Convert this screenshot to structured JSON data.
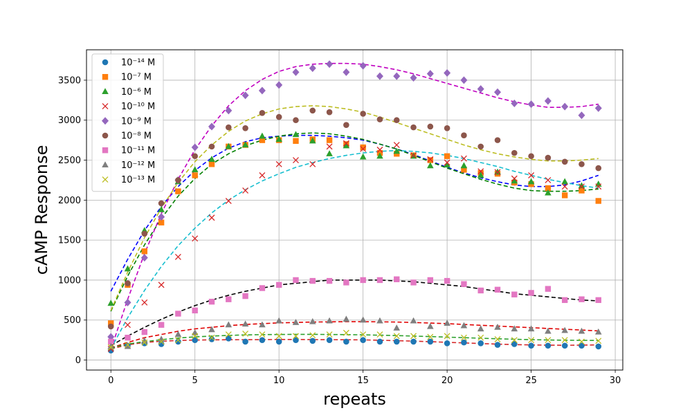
{
  "chart_data": {
    "type": "scatter",
    "title": "",
    "xlabel": "repeats",
    "ylabel": "cAMP Response",
    "xlim": [
      -1.45,
      30.45
    ],
    "ylim": [
      -125,
      3880
    ],
    "xticks": [
      0,
      5,
      10,
      15,
      20,
      25,
      30
    ],
    "yticks": [
      0,
      500,
      1000,
      1500,
      2000,
      2500,
      3000,
      3500
    ],
    "grid": true,
    "legend_position": "top-left",
    "x": [
      0,
      1,
      2,
      3,
      4,
      5,
      6,
      7,
      8,
      9,
      10,
      11,
      12,
      13,
      14,
      15,
      16,
      17,
      18,
      19,
      20,
      21,
      22,
      23,
      24,
      25,
      26,
      27,
      28,
      29
    ],
    "series": [
      {
        "name": "10⁻¹⁴ M",
        "marker": "circle",
        "color": "#1f77b4",
        "values": [
          120,
          180,
          210,
          200,
          230,
          250,
          260,
          270,
          230,
          250,
          230,
          250,
          240,
          250,
          230,
          250,
          230,
          230,
          230,
          230,
          210,
          220,
          210,
          190,
          200,
          180,
          180,
          180,
          180,
          170
        ],
        "fit_color": "#d62728",
        "fit": [
          140,
          190,
          220,
          235,
          245,
          250,
          252,
          254,
          255,
          256,
          257,
          257,
          256,
          255,
          254,
          252,
          248,
          243,
          237,
          230,
          222,
          214,
          206,
          199,
          193,
          189,
          186,
          185,
          186,
          190
        ]
      },
      {
        "name": "10⁻⁷ M",
        "marker": "square",
        "color": "#ff7f0e",
        "values": [
          460,
          940,
          1360,
          1720,
          2110,
          2310,
          2450,
          2670,
          2690,
          2750,
          2750,
          2740,
          2760,
          2750,
          2700,
          2660,
          2590,
          2580,
          2560,
          2500,
          2550,
          2380,
          2340,
          2330,
          2220,
          2200,
          2150,
          2060,
          2120,
          1990
        ],
        "fit_color": "#0000ff",
        "fit": [
          860,
          1260,
          1620,
          1920,
          2170,
          2370,
          2530,
          2650,
          2730,
          2780,
          2800,
          2810,
          2810,
          2800,
          2780,
          2750,
          2700,
          2640,
          2570,
          2490,
          2410,
          2340,
          2280,
          2230,
          2190,
          2170,
          2170,
          2190,
          2240,
          2310
        ]
      },
      {
        "name": "10⁻⁶ M",
        "marker": "triangle",
        "color": "#2ca02c",
        "values": [
          710,
          1140,
          1620,
          1880,
          2230,
          2380,
          2510,
          2670,
          2690,
          2800,
          2760,
          2820,
          2740,
          2580,
          2680,
          2540,
          2550,
          2610,
          2550,
          2430,
          2440,
          2430,
          2310,
          2350,
          2240,
          2230,
          2090,
          2230,
          2180,
          2200
        ],
        "fit_color": "#008000",
        "fit": [
          610,
          1050,
          1440,
          1770,
          2050,
          2270,
          2450,
          2580,
          2680,
          2750,
          2800,
          2830,
          2840,
          2830,
          2800,
          2760,
          2700,
          2640,
          2560,
          2480,
          2400,
          2330,
          2260,
          2200,
          2150,
          2120,
          2110,
          2110,
          2120,
          2140
        ]
      },
      {
        "name": "10⁻¹⁰ M",
        "marker": "x",
        "color": "#d62728",
        "values": [
          140,
          440,
          720,
          940,
          1290,
          1520,
          1780,
          1990,
          2120,
          2310,
          2450,
          2500,
          2450,
          2670,
          2710,
          2640,
          2630,
          2690,
          2560,
          2510,
          2470,
          2520,
          2360,
          2350,
          2270,
          2310,
          2250,
          2170,
          2170,
          2170
        ],
        "fit_color": "#17becf",
        "fit": [
          140,
          530,
          870,
          1170,
          1430,
          1650,
          1840,
          2000,
          2130,
          2240,
          2330,
          2410,
          2470,
          2520,
          2560,
          2590,
          2610,
          2620,
          2610,
          2590,
          2560,
          2520,
          2470,
          2420,
          2360,
          2310,
          2260,
          2220,
          2180,
          2150
        ]
      },
      {
        "name": "10⁻⁹ M",
        "marker": "diamond",
        "color": "#9467bd",
        "values": [
          290,
          720,
          1280,
          1790,
          2250,
          2660,
          2920,
          3120,
          3310,
          3370,
          3440,
          3600,
          3650,
          3700,
          3600,
          3680,
          3550,
          3550,
          3530,
          3580,
          3590,
          3500,
          3390,
          3350,
          3210,
          3200,
          3240,
          3170,
          3060,
          3150
        ],
        "fit_color": "#c000c0",
        "fit": [
          130,
          760,
          1330,
          1830,
          2260,
          2630,
          2930,
          3180,
          3370,
          3510,
          3610,
          3670,
          3700,
          3710,
          3710,
          3700,
          3670,
          3630,
          3580,
          3520,
          3460,
          3400,
          3340,
          3280,
          3230,
          3190,
          3160,
          3160,
          3170,
          3200
        ]
      },
      {
        "name": "10⁻⁸ M",
        "marker": "circle",
        "color": "#8c564b",
        "values": [
          420,
          960,
          1580,
          1960,
          2250,
          2550,
          2670,
          2910,
          2900,
          3090,
          3040,
          3000,
          3120,
          3100,
          2940,
          3080,
          3010,
          3000,
          2910,
          2920,
          2900,
          2810,
          2670,
          2750,
          2590,
          2550,
          2530,
          2480,
          2450,
          2400
        ],
        "fit_color": "#bcbd22",
        "fit": [
          620,
          1100,
          1530,
          1900,
          2220,
          2480,
          2690,
          2860,
          2990,
          3080,
          3140,
          3170,
          3180,
          3170,
          3140,
          3100,
          3040,
          2970,
          2900,
          2830,
          2760,
          2690,
          2630,
          2580,
          2540,
          2510,
          2490,
          2490,
          2500,
          2520
        ]
      },
      {
        "name": "10⁻¹¹ M",
        "marker": "square",
        "color": "#e377c2",
        "values": [
          230,
          280,
          350,
          440,
          580,
          620,
          730,
          760,
          800,
          900,
          940,
          1000,
          990,
          990,
          970,
          1000,
          1000,
          1010,
          970,
          1000,
          990,
          950,
          870,
          880,
          820,
          840,
          890,
          750,
          760,
          750
        ],
        "fit_color": "#000000",
        "fit": [
          180,
          300,
          410,
          510,
          600,
          680,
          750,
          810,
          860,
          900,
          940,
          960,
          980,
          1000,
          1000,
          1000,
          1000,
          990,
          980,
          960,
          940,
          920,
          890,
          860,
          830,
          810,
          790,
          770,
          750,
          740
        ]
      },
      {
        "name": "10⁻¹² M",
        "marker": "triangle",
        "color": "#7f7f7f",
        "values": [
          170,
          170,
          240,
          260,
          320,
          340,
          380,
          440,
          450,
          440,
          490,
          470,
          480,
          490,
          510,
          500,
          490,
          400,
          490,
          420,
          460,
          430,
          390,
          410,
          390,
          390,
          360,
          370,
          360,
          350
        ],
        "fit_color": "#e00000",
        "fit": [
          150,
          220,
          280,
          320,
          360,
          390,
          410,
          430,
          445,
          455,
          465,
          470,
          475,
          478,
          480,
          480,
          478,
          475,
          470,
          462,
          455,
          445,
          435,
          425,
          415,
          405,
          395,
          385,
          375,
          365
        ]
      },
      {
        "name": "10⁻¹³ M",
        "marker": "x",
        "color": "#bcbd22",
        "values": [
          160,
          190,
          220,
          230,
          250,
          300,
          280,
          320,
          330,
          320,
          300,
          300,
          310,
          320,
          340,
          320,
          320,
          300,
          300,
          290,
          300,
          280,
          280,
          260,
          250,
          250,
          250,
          250,
          230,
          240
        ],
        "fit_color": "#2ca02c",
        "fit": [
          150,
          200,
          230,
          255,
          275,
          290,
          300,
          308,
          314,
          318,
          320,
          321,
          321,
          320,
          318,
          315,
          311,
          306,
          300,
          294,
          287,
          280,
          273,
          266,
          260,
          255,
          251,
          248,
          246,
          245
        ]
      }
    ]
  }
}
